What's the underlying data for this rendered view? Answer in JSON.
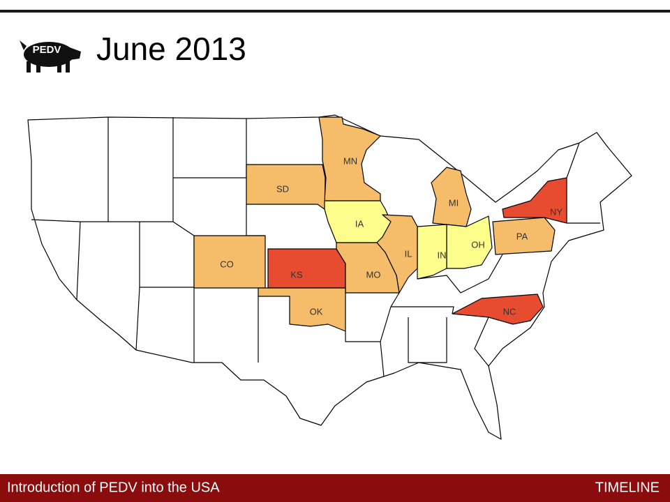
{
  "header": {
    "logo": "PEDV",
    "title": "June 2013"
  },
  "map": {
    "states": [
      {
        "label": "MN",
        "color": "#f5bc6a"
      },
      {
        "label": "SD",
        "color": "#f5bc6a"
      },
      {
        "label": "IA",
        "color": "#fdfd8c"
      },
      {
        "label": "MI",
        "color": "#f5bc6a"
      },
      {
        "label": "NY",
        "color": "#e84c30"
      },
      {
        "label": "PA",
        "color": "#f5bc6a"
      },
      {
        "label": "OH",
        "color": "#fdfd8c"
      },
      {
        "label": "IN",
        "color": "#fdfd8c"
      },
      {
        "label": "IL",
        "color": "#f5bc6a"
      },
      {
        "label": "CO",
        "color": "#f5bc6a"
      },
      {
        "label": "KS",
        "color": "#e84c30"
      },
      {
        "label": "MO",
        "color": "#f5bc6a"
      },
      {
        "label": "OK",
        "color": "#f5bc6a"
      },
      {
        "label": "NC",
        "color": "#e84c30"
      }
    ]
  },
  "footer": {
    "left": "Introduction of PEDV into the USA",
    "right": "TIMELINE"
  }
}
